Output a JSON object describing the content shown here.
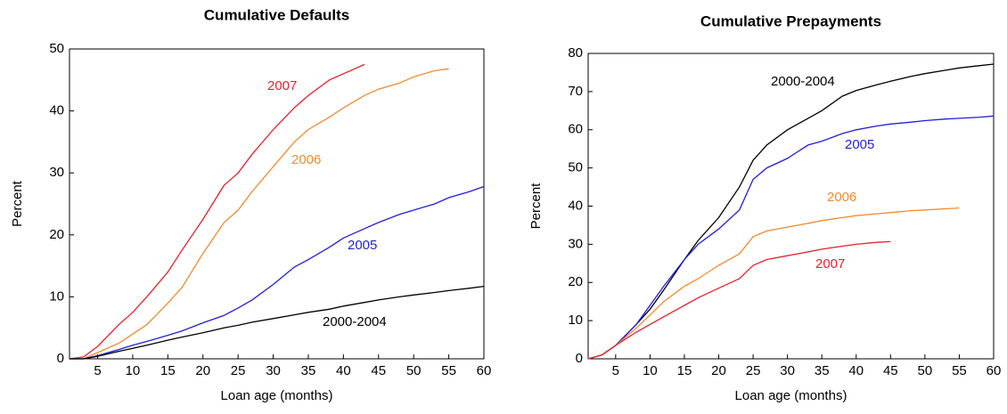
{
  "chart_data": [
    {
      "type": "line",
      "title": "Cumulative Defaults",
      "x_label": "Loan age (months)",
      "y_label": "Percent",
      "x": [
        1,
        3,
        5,
        8,
        10,
        12,
        15,
        17,
        20,
        23,
        25,
        27,
        30,
        33,
        35,
        38,
        40,
        43,
        45,
        48,
        50,
        53,
        55,
        58,
        60
      ],
      "xlim": [
        1,
        60
      ],
      "xticks": [
        5,
        10,
        15,
        20,
        25,
        30,
        35,
        40,
        45,
        50,
        55,
        60
      ],
      "ylim": [
        0,
        50
      ],
      "yticks": [
        0,
        10,
        20,
        30,
        40,
        50
      ],
      "series": [
        {
          "name": "2007",
          "color": "#e8202a",
          "values": [
            0,
            0.3,
            2,
            5.5,
            7.5,
            10,
            14,
            17.5,
            22.5,
            28,
            30,
            33,
            37,
            40.5,
            42.5,
            45,
            46,
            47.5,
            null,
            null,
            null,
            null,
            null,
            null,
            null
          ]
        },
        {
          "name": "2006",
          "color": "#f28a2e",
          "values": [
            0,
            0,
            1,
            2.5,
            4,
            5.5,
            9,
            11.5,
            17,
            22,
            24,
            27,
            31,
            35,
            37,
            39,
            40.5,
            42.5,
            43.5,
            44.5,
            45.5,
            46.5,
            46.8,
            null,
            null
          ]
        },
        {
          "name": "2005",
          "color": "#1f1fe0",
          "values": [
            0,
            0,
            0.5,
            1.5,
            2.2,
            2.8,
            3.8,
            4.5,
            5.8,
            7,
            8.2,
            9.5,
            12,
            14.8,
            16,
            18,
            19.5,
            21,
            22,
            23.3,
            24,
            25,
            26,
            27,
            27.8
          ]
        },
        {
          "name": "2000-2004",
          "color": "#000000",
          "values": [
            0,
            0,
            0.4,
            1.2,
            1.7,
            2.2,
            3,
            3.5,
            4.2,
            5,
            5.4,
            5.9,
            6.5,
            7.1,
            7.5,
            8,
            8.5,
            9.1,
            9.5,
            10,
            10.3,
            10.7,
            11,
            11.4,
            11.7
          ]
        }
      ]
    },
    {
      "type": "line",
      "title": "Cumulative Prepayments",
      "x_label": "Loan age (months)",
      "y_label": "Percent",
      "x": [
        1,
        3,
        5,
        8,
        10,
        12,
        15,
        17,
        20,
        23,
        25,
        27,
        30,
        33,
        35,
        38,
        40,
        43,
        45,
        48,
        50,
        53,
        55,
        58,
        60
      ],
      "xlim": [
        1,
        60
      ],
      "xticks": [
        5,
        10,
        15,
        20,
        25,
        30,
        35,
        40,
        45,
        50,
        55,
        60
      ],
      "ylim": [
        0,
        80
      ],
      "yticks": [
        0,
        10,
        20,
        30,
        40,
        50,
        60,
        70,
        80
      ],
      "series": [
        {
          "name": "2000-2004",
          "color": "#000000",
          "values": [
            0,
            1,
            3.5,
            9,
            13,
            18,
            26,
            31,
            37,
            45,
            52,
            56,
            60,
            63,
            65,
            68.8,
            70.3,
            71.8,
            72.7,
            74,
            74.7,
            75.6,
            76.2,
            76.8,
            77.2
          ]
        },
        {
          "name": "2005",
          "color": "#1f1fe0",
          "values": [
            0,
            1,
            3.5,
            9,
            14,
            19,
            26,
            30,
            34,
            39,
            47,
            50,
            52.5,
            56,
            57,
            59,
            60,
            61,
            61.5,
            62,
            62.4,
            62.8,
            63,
            63.3,
            63.6
          ]
        },
        {
          "name": "2006",
          "color": "#f28a2e",
          "values": [
            0,
            1,
            3.5,
            8,
            11.5,
            15,
            19,
            21,
            24.5,
            27.5,
            32,
            33.5,
            34.5,
            35.5,
            36.2,
            37,
            37.5,
            38,
            38.3,
            38.8,
            39,
            39.3,
            39.5,
            null,
            null
          ]
        },
        {
          "name": "2007",
          "color": "#e8202a",
          "values": [
            0,
            1,
            3.5,
            7,
            9,
            11,
            14,
            16,
            18.5,
            21,
            24.5,
            26,
            27,
            28,
            28.7,
            29.5,
            30,
            30.5,
            30.7,
            null,
            null,
            null,
            null,
            null,
            null
          ]
        }
      ]
    }
  ]
}
